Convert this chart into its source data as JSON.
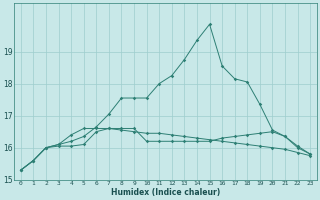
{
  "xlabel": "Humidex (Indice chaleur)",
  "x": [
    0,
    1,
    2,
    3,
    4,
    5,
    6,
    7,
    8,
    9,
    10,
    11,
    12,
    13,
    14,
    15,
    16,
    17,
    18,
    19,
    20,
    21,
    22,
    23
  ],
  "line1": [
    15.3,
    15.6,
    16.0,
    16.05,
    16.05,
    16.1,
    16.5,
    16.6,
    16.6,
    16.6,
    16.2,
    16.2,
    16.2,
    16.2,
    16.2,
    16.2,
    16.3,
    16.35,
    16.4,
    16.45,
    16.5,
    16.35,
    16.0,
    15.8
  ],
  "line2": [
    15.3,
    15.6,
    16.0,
    16.1,
    16.2,
    16.35,
    16.65,
    17.05,
    17.55,
    17.55,
    17.55,
    18.0,
    18.25,
    18.75,
    19.35,
    19.85,
    18.55,
    18.15,
    18.05,
    17.35,
    16.55,
    16.35,
    16.05,
    15.8
  ],
  "line3": [
    15.3,
    15.6,
    16.0,
    16.1,
    16.4,
    16.6,
    16.6,
    16.6,
    16.55,
    16.5,
    16.45,
    16.45,
    16.4,
    16.35,
    16.3,
    16.25,
    16.2,
    16.15,
    16.1,
    16.05,
    16.0,
    15.95,
    15.85,
    15.75
  ],
  "line_color": "#2d7f74",
  "bg_color": "#c8e8e8",
  "grid_color": "#9ecece",
  "ylim": [
    15.0,
    20.5
  ],
  "yticks": [
    15,
    16,
    17,
    18,
    19
  ],
  "figsize": [
    3.2,
    2.0
  ],
  "dpi": 100
}
